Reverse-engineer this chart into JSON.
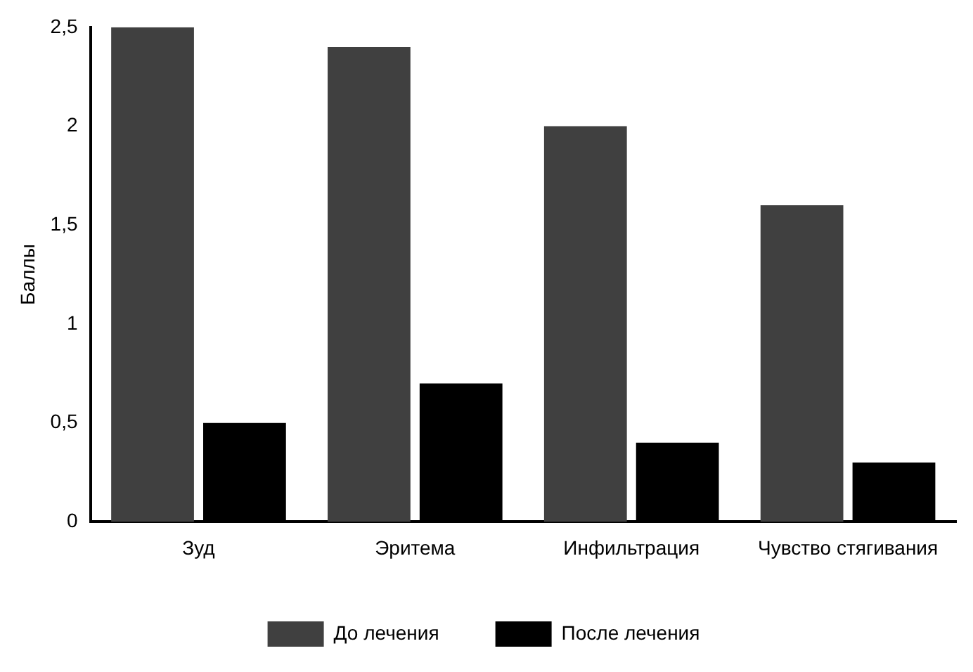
{
  "chart_data": {
    "type": "bar",
    "ylabel": "Баллы",
    "categories": [
      "Зуд",
      "Эритема",
      "Инфильтрация",
      "Чувство стягивания"
    ],
    "series": [
      {
        "name": "До лечения",
        "color": "#404040",
        "values": [
          2.5,
          2.4,
          2.0,
          1.6
        ]
      },
      {
        "name": "После лечения",
        "color": "#000000",
        "values": [
          0.5,
          0.7,
          0.4,
          0.3
        ]
      }
    ],
    "ylim": [
      0,
      2.5
    ],
    "yticks": [
      0,
      {
        "value": 0.5,
        "label": "0,5"
      },
      1,
      {
        "value": 1.5,
        "label": "1,5"
      },
      2,
      {
        "value": 2.5,
        "label": "2,5"
      }
    ],
    "grid": false,
    "legend": "bottom"
  }
}
